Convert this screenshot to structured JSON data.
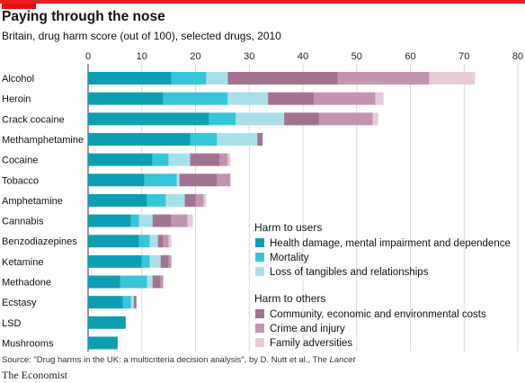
{
  "header": {
    "title": "Paying through the nose",
    "subtitle": "Britain, drug harm score (out of 100), selected drugs, 2010"
  },
  "footer": {
    "source_prefix": "Source: \"Drug harms in the UK: a multicriteria decision analysis\", by D. Nutt et al., The ",
    "source_journal": "Lancet",
    "brand": "The Economist"
  },
  "colors": {
    "accent": "#e3120b",
    "top_rule": "#ee1c25",
    "health": "#0e9eb3",
    "mortality": "#37c6d9",
    "tangibles": "#a8e0ea",
    "community": "#a2738f",
    "crime": "#c394b0",
    "family": "#e6ccd9"
  },
  "chart_data": {
    "type": "bar",
    "orientation": "horizontal",
    "stacked": true,
    "title": "Paying through the nose",
    "subtitle": "Britain, drug harm score (out of 100), selected drugs, 2010",
    "xlim": [
      0,
      80
    ],
    "xticks": [
      "0",
      "10",
      "20",
      "30",
      "40",
      "50",
      "60",
      "70",
      "80"
    ],
    "grid": "vertical",
    "categories": [
      "Alcohol",
      "Heroin",
      "Crack cocaine",
      "Methamphetamine",
      "Cocaine",
      "Tobacco",
      "Amphetamine",
      "Cannabis",
      "Benzodiazepines",
      "Ketamine",
      "Methadone",
      "Ecstasy",
      "LSD",
      "Mushrooms"
    ],
    "legend_groups": [
      {
        "title": "Harm to users",
        "series": [
          0,
          1,
          2
        ]
      },
      {
        "title": "Harm to others",
        "series": [
          3,
          4,
          5
        ]
      }
    ],
    "legend_placement": "bottom-right",
    "series": [
      {
        "name": "Health damage, mental impairment and dependence",
        "color": "#0e9eb3",
        "values": [
          15.5,
          14,
          22.5,
          19,
          12,
          10.5,
          11,
          8,
          9.5,
          10,
          6,
          6.5,
          7,
          5.5
        ]
      },
      {
        "name": "Mortality",
        "color": "#37c6d9",
        "values": [
          6.5,
          12,
          5,
          5,
          3,
          6,
          3.5,
          1.5,
          2,
          1.5,
          5,
          1.5,
          0,
          0
        ]
      },
      {
        "name": "Loss of tangibles and relationships",
        "color": "#a8e0ea",
        "values": [
          4,
          7.5,
          9,
          7.5,
          4,
          0.5,
          3.5,
          2.5,
          1.5,
          2,
          1,
          0.5,
          0,
          0
        ]
      },
      {
        "name": "Community, economic and environmental costs",
        "color": "#a2738f",
        "values": [
          20.5,
          8.5,
          6.5,
          1,
          5.5,
          7,
          2,
          3.5,
          1,
          1.5,
          1.5,
          0.5,
          0,
          0
        ]
      },
      {
        "name": "Crime and injury",
        "color": "#c394b0",
        "values": [
          17,
          11.5,
          10,
          0,
          1.5,
          2.5,
          1.5,
          3,
          1,
          0.5,
          0.5,
          0,
          0,
          0
        ]
      },
      {
        "name": "Family adversities",
        "color": "#e6ccd9",
        "values": [
          8.5,
          1.5,
          1,
          0,
          0.5,
          0,
          0.5,
          1,
          0.5,
          0,
          0,
          0,
          0,
          0
        ]
      }
    ]
  }
}
